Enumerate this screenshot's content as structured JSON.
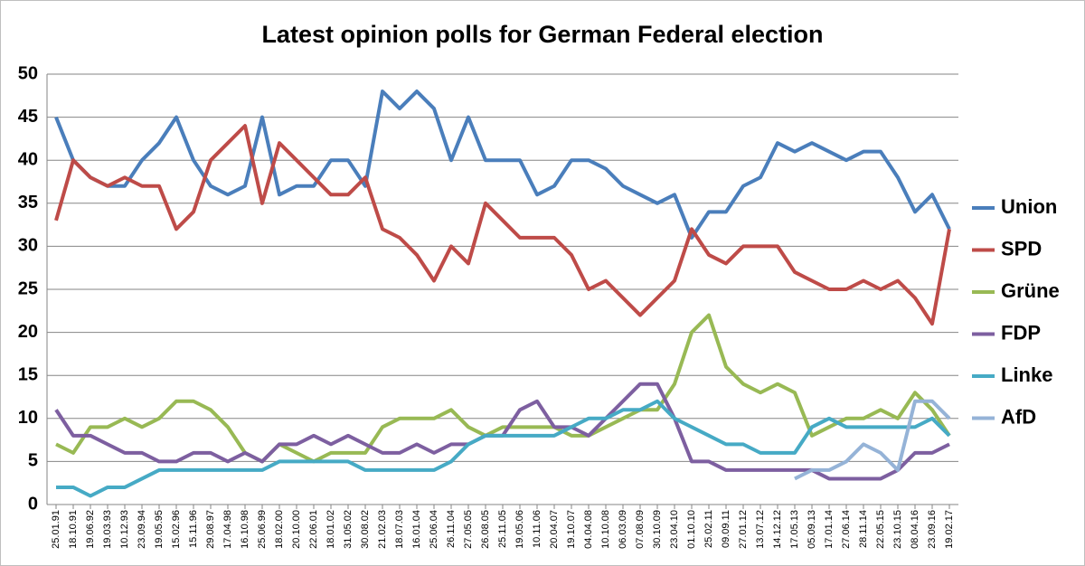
{
  "chart_data": {
    "type": "line",
    "title": "Latest opinion polls for German Federal election",
    "categories": [
      "25.01.91",
      "18.10.91",
      "19.06.92",
      "19.03.93",
      "10.12.93",
      "23.09.94",
      "19.05.95",
      "15.02.96",
      "15.11.96",
      "29.08.97",
      "17.04.98",
      "16.10.98",
      "25.06.99",
      "18.02.00",
      "20.10.00",
      "22.06.01",
      "18.01.02",
      "31.05.02",
      "30.08.02",
      "21.02.03",
      "18.07.03",
      "16.01.04",
      "25.06.04",
      "26.11.04",
      "27.05.05",
      "26.08.05",
      "25.11.05",
      "19.05.06",
      "10.11.06",
      "20.04.07",
      "19.10.07",
      "04.04.08",
      "10.10.08",
      "06.03.09",
      "07.08.09",
      "30.10.09",
      "23.04.10",
      "01.10.10",
      "25.02.11",
      "09.09.11",
      "27.01.12",
      "13.07.12",
      "14.12.12",
      "17.05.13",
      "05.09.13",
      "17.01.14",
      "27.06.14",
      "28.11.14",
      "22.05.15",
      "23.10.15",
      "08.04.16",
      "23.09.16",
      "19.02.17"
    ],
    "series": [
      {
        "name": "Union",
        "color": "#4a7ebb",
        "values": [
          45,
          40,
          38,
          37,
          37,
          40,
          42,
          45,
          40,
          37,
          36,
          37,
          45,
          36,
          37,
          37,
          40,
          40,
          37,
          48,
          46,
          48,
          46,
          40,
          45,
          40,
          40,
          40,
          36,
          37,
          40,
          40,
          39,
          37,
          36,
          35,
          36,
          31,
          34,
          34,
          37,
          38,
          42,
          41,
          42,
          41,
          40,
          41,
          41,
          38,
          34,
          36,
          32
        ]
      },
      {
        "name": "SPD",
        "color": "#be4b48",
        "values": [
          33,
          40,
          38,
          37,
          38,
          37,
          37,
          32,
          34,
          40,
          42,
          44,
          35,
          42,
          40,
          38,
          36,
          36,
          38,
          32,
          31,
          29,
          26,
          30,
          28,
          35,
          33,
          31,
          31,
          31,
          29,
          25,
          26,
          24,
          22,
          24,
          26,
          32,
          29,
          28,
          30,
          30,
          30,
          27,
          26,
          25,
          25,
          26,
          25,
          26,
          24,
          21,
          32
        ]
      },
      {
        "name": "Grüne",
        "color": "#98b954",
        "values": [
          7,
          6,
          9,
          9,
          10,
          9,
          10,
          12,
          12,
          11,
          9,
          6,
          5,
          7,
          6,
          5,
          6,
          6,
          6,
          9,
          10,
          10,
          10,
          11,
          9,
          8,
          9,
          9,
          9,
          9,
          8,
          8,
          9,
          10,
          11,
          11,
          14,
          20,
          22,
          16,
          14,
          13,
          14,
          13,
          8,
          9,
          10,
          10,
          11,
          10,
          13,
          11,
          8
        ]
      },
      {
        "name": "FDP",
        "color": "#7d5fa0",
        "values": [
          11,
          8,
          8,
          7,
          6,
          6,
          5,
          5,
          6,
          6,
          5,
          6,
          5,
          7,
          7,
          8,
          7,
          8,
          7,
          6,
          6,
          7,
          6,
          7,
          7,
          8,
          8,
          11,
          12,
          9,
          9,
          8,
          10,
          12,
          14,
          14,
          10,
          5,
          5,
          4,
          4,
          4,
          4,
          4,
          4,
          3,
          3,
          3,
          3,
          4,
          6,
          6,
          7
        ]
      },
      {
        "name": "Linke",
        "color": "#46aac5",
        "values": [
          2,
          2,
          1,
          2,
          2,
          3,
          4,
          4,
          4,
          4,
          4,
          4,
          4,
          5,
          5,
          5,
          5,
          5,
          4,
          4,
          4,
          4,
          4,
          5,
          7,
          8,
          8,
          8,
          8,
          8,
          9,
          10,
          10,
          11,
          11,
          12,
          10,
          9,
          8,
          7,
          7,
          6,
          6,
          6,
          9,
          10,
          9,
          9,
          9,
          9,
          9,
          10,
          8
        ]
      },
      {
        "name": "AfD",
        "color": "#95b3d7",
        "values": [
          null,
          null,
          null,
          null,
          null,
          null,
          null,
          null,
          null,
          null,
          null,
          null,
          null,
          null,
          null,
          null,
          null,
          null,
          null,
          null,
          null,
          null,
          null,
          null,
          null,
          null,
          null,
          null,
          null,
          null,
          null,
          null,
          null,
          null,
          null,
          null,
          null,
          null,
          null,
          null,
          null,
          null,
          null,
          3,
          4,
          4,
          5,
          7,
          6,
          4,
          12,
          12,
          10
        ]
      }
    ],
    "ylim": [
      0,
      50
    ],
    "yticks": [
      0,
      5,
      10,
      15,
      20,
      25,
      30,
      35,
      40,
      45,
      50
    ],
    "grid": true,
    "legend": "right"
  }
}
